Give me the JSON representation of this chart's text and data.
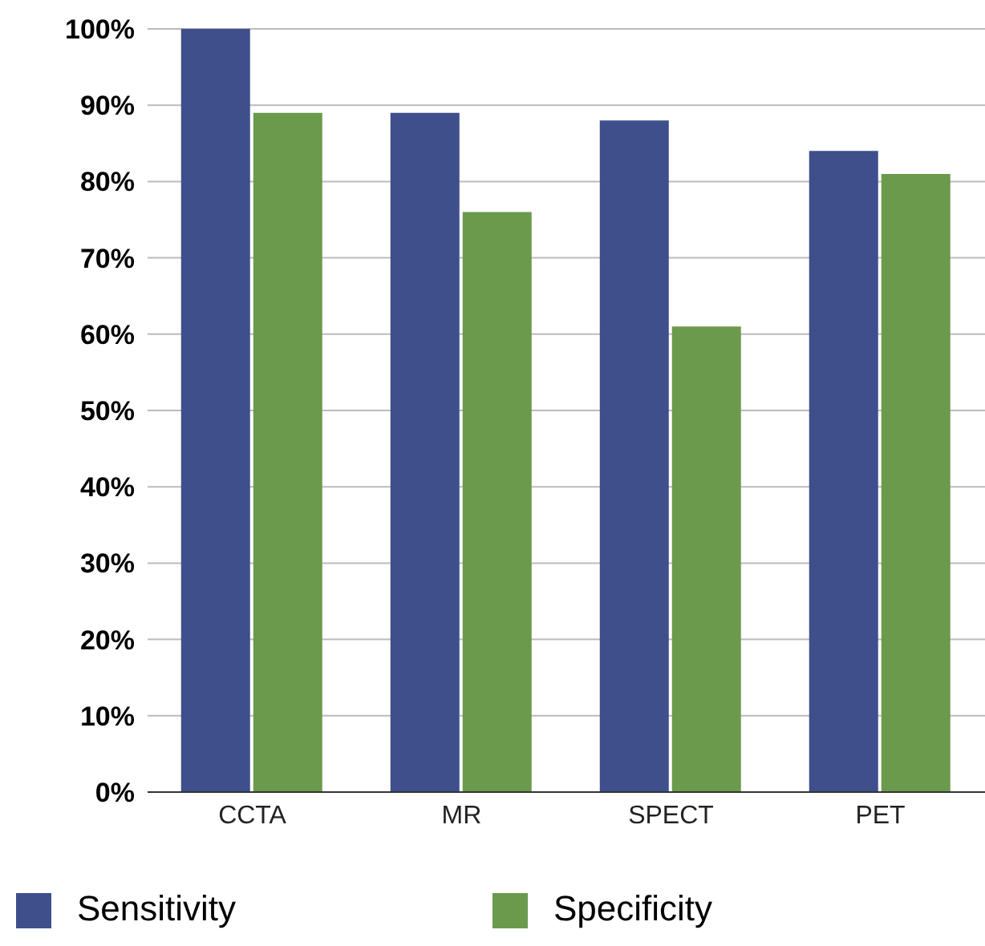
{
  "chart_data": {
    "type": "bar",
    "categories": [
      "CCTA",
      "MR",
      "SPECT",
      "PET"
    ],
    "series": [
      {
        "name": "Sensitivity",
        "color": "#3e4f8c",
        "values": [
          100,
          89,
          88,
          84
        ]
      },
      {
        "name": "Specificity",
        "color": "#6b9a4c",
        "values": [
          89,
          76,
          61,
          81
        ]
      }
    ],
    "ylim": [
      0,
      100
    ],
    "yticks": [
      {
        "value": 0,
        "label": "0%"
      },
      {
        "value": 10,
        "label": "10%"
      },
      {
        "value": 20,
        "label": "20%"
      },
      {
        "value": 30,
        "label": "30%"
      },
      {
        "value": 40,
        "label": "40%"
      },
      {
        "value": 50,
        "label": "50%"
      },
      {
        "value": 60,
        "label": "60%"
      },
      {
        "value": 70,
        "label": "70%"
      },
      {
        "value": 80,
        "label": "80%"
      },
      {
        "value": 90,
        "label": "90%"
      },
      {
        "value": 100,
        "label": "100%"
      }
    ],
    "grid": "y",
    "legend": "bottom"
  }
}
